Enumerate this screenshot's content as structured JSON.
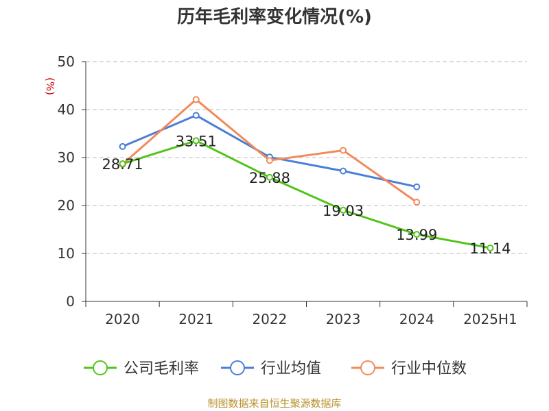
{
  "chart_data": {
    "type": "line",
    "title": "历年毛利率变化情况(%)",
    "ylabel": "(%)",
    "xlabel": "",
    "categories": [
      "2020",
      "2021",
      "2022",
      "2023",
      "2024",
      "2025H1"
    ],
    "ylim": [
      0,
      50
    ],
    "yticks": [
      0,
      10,
      20,
      30,
      40,
      50
    ],
    "grid": true,
    "legend_position": "bottom",
    "series": [
      {
        "name": "公司毛利率",
        "color": "#52c41a",
        "values": [
          28.71,
          33.51,
          25.88,
          19.03,
          13.99,
          11.14
        ],
        "labels": [
          "28.71",
          "33.51",
          "25.88",
          "19.03",
          "13.99",
          "11.14"
        ]
      },
      {
        "name": "行业均值",
        "color": "#4a7fd8",
        "values": [
          32.3,
          38.8,
          30.1,
          27.2,
          23.9,
          null
        ]
      },
      {
        "name": "行业中位数",
        "color": "#f28a5a",
        "values": [
          28.6,
          42.1,
          29.4,
          31.5,
          20.7,
          null
        ]
      }
    ]
  },
  "source": "制图数据来自恒生聚源数据库"
}
